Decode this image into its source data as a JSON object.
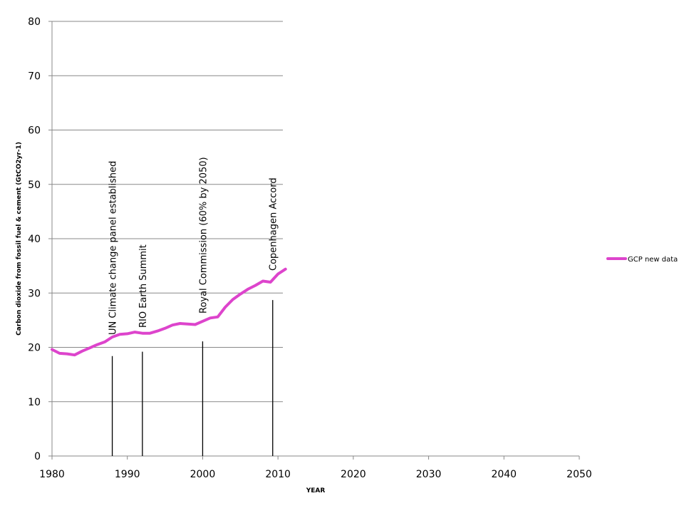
{
  "chart_data": {
    "type": "line",
    "xlabel": "YEAR",
    "ylabel": "Carbon dioxide from fossil fuel & cement (GtCO2yr-1)",
    "xlim": [
      1980,
      2050
    ],
    "ylim": [
      0,
      80
    ],
    "xticks": [
      1980,
      1990,
      2000,
      2010,
      2020,
      2030,
      2040,
      2050
    ],
    "yticks": [
      0,
      10,
      20,
      30,
      40,
      50,
      60,
      70,
      80
    ],
    "grid": "horizontal",
    "legend_position": "right",
    "series": [
      {
        "name": "GCP new data",
        "color": "#dd44cc",
        "x": [
          1980,
          1981,
          1982,
          1983,
          1984,
          1985,
          1986,
          1987,
          1988,
          1989,
          1990,
          1991,
          1992,
          1993,
          1994,
          1995,
          1996,
          1997,
          1998,
          1999,
          2000,
          2001,
          2002,
          2003,
          2004,
          2005,
          2006,
          2007,
          2008,
          2009,
          2010,
          2011
        ],
        "values": [
          19.6,
          18.9,
          18.8,
          18.6,
          19.3,
          19.9,
          20.5,
          21.0,
          21.9,
          22.4,
          22.5,
          22.8,
          22.6,
          22.6,
          23.0,
          23.5,
          24.1,
          24.4,
          24.3,
          24.2,
          24.8,
          25.4,
          25.6,
          27.4,
          28.8,
          29.8,
          30.7,
          31.4,
          32.2,
          32.0,
          33.5,
          34.4
        ]
      }
    ],
    "annotations": [
      {
        "label": "UN Climate change panel established",
        "year": 1988,
        "marker_top": 18.4
      },
      {
        "label": "RIO Earth Summit",
        "year": 1992,
        "marker_top": 19.2
      },
      {
        "label": "Royal Commission (60% by 2050)",
        "year": 2000,
        "marker_top": 21.1
      },
      {
        "label": "Copenhagen  Accord",
        "year": 2009.3,
        "marker_top": 28.7
      }
    ]
  }
}
